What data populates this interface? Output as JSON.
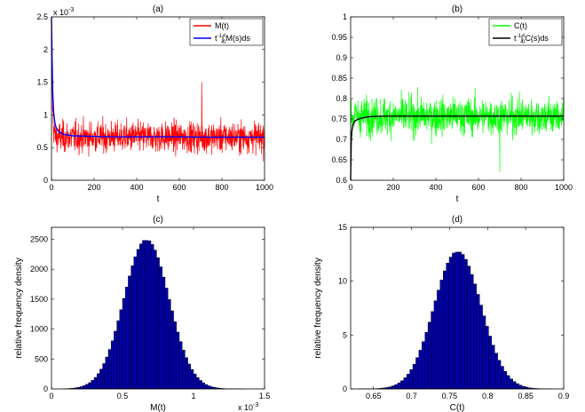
{
  "chart_data": [
    {
      "panel_label": "(a)",
      "type": "line",
      "xlabel": "t",
      "ylabel": "",
      "xlim": [
        0,
        1000
      ],
      "ylim": [
        0,
        0.0025
      ],
      "xticks": [
        "0",
        "200",
        "400",
        "600",
        "800",
        "1000"
      ],
      "yticks": [
        "0",
        "0.5",
        "1",
        "1.5",
        "2",
        "2.5"
      ],
      "y_exponent": "x 10",
      "y_exponent_power": "-3",
      "legend_position": "top-right",
      "series": [
        {
          "name": "M(t)",
          "color": "#ff0000",
          "description_points": {
            "t": [
              0,
              5,
              10,
              20,
              50,
              100,
              200,
              300,
              400,
              500,
              600,
              700,
              705,
              800,
              900,
              1000
            ],
            "y": [
              0.0024,
              0.0017,
              0.0012,
              0.0009,
              0.00075,
              0.0007,
              0.00068,
              0.00067,
              0.00066,
              0.00066,
              0.00066,
              0.00066,
              0.0015,
              0.00066,
              0.00066,
              0.00066
            ]
          },
          "noise_band": [
            0.0002,
            0.0013
          ]
        },
        {
          "name_parts": [
            "t",
            "-1",
            "∫",
            "t",
            "0",
            "M(s)ds"
          ],
          "color": "#0000ff",
          "x": [
            0,
            3,
            6,
            10,
            15,
            20,
            30,
            40,
            60,
            80,
            100,
            150,
            200,
            300,
            400,
            500,
            600,
            700,
            800,
            900,
            1000
          ],
          "y": [
            0.0025,
            0.00185,
            0.00135,
            0.00105,
            0.0009,
            0.00082,
            0.00076,
            0.00073,
            0.0007,
            0.00069,
            0.00068,
            0.000675,
            0.00067,
            0.000665,
            0.000665,
            0.000665,
            0.000665,
            0.00066,
            0.00066,
            0.00066,
            0.00066
          ]
        }
      ]
    },
    {
      "panel_label": "(b)",
      "type": "line",
      "xlabel": "t",
      "ylabel": "",
      "xlim": [
        0,
        1000
      ],
      "ylim": [
        0.6,
        1.0
      ],
      "xticks": [
        "0",
        "200",
        "400",
        "600",
        "800",
        "1000"
      ],
      "yticks": [
        "0.6",
        "0.65",
        "0.7",
        "0.75",
        "0.8",
        "0.85",
        "0.9",
        "0.95",
        "1"
      ],
      "legend_position": "top-right",
      "series": [
        {
          "name": "C(t)",
          "color": "#00ff00",
          "noise_center": 0.757,
          "noise_band": [
            0.62,
            0.86
          ]
        },
        {
          "name_parts": [
            "t",
            "-1",
            "∫",
            "t",
            "0",
            "C(s)ds"
          ],
          "color": "#000000",
          "x": [
            0,
            3,
            6,
            10,
            20,
            30,
            50,
            80,
            100,
            150,
            200,
            300,
            400,
            500,
            600,
            700,
            800,
            900,
            1000
          ],
          "y": [
            0.6,
            0.7,
            0.72,
            0.735,
            0.745,
            0.748,
            0.752,
            0.755,
            0.756,
            0.757,
            0.757,
            0.757,
            0.757,
            0.757,
            0.757,
            0.757,
            0.757,
            0.757,
            0.757
          ]
        }
      ]
    },
    {
      "panel_label": "(c)",
      "type": "bar",
      "xlabel": "M(t)",
      "ylabel": "relative frequency density",
      "xlim": [
        0,
        0.0015
      ],
      "ylim": [
        0,
        2700
      ],
      "xticks": [
        "0",
        "0.5",
        "1",
        "1.5"
      ],
      "yticks": [
        "0",
        "500",
        "1000",
        "1500",
        "2000",
        "2500"
      ],
      "x_exponent": "x 10",
      "x_exponent_power": "-3",
      "color": "#0000aa",
      "distribution": {
        "mean": 0.00065,
        "sd": 0.00016,
        "peak": 2480,
        "from": 8e-05,
        "to": 0.00136,
        "bins": 64
      }
    },
    {
      "panel_label": "(d)",
      "type": "bar",
      "xlabel": "C(t)",
      "ylabel": "relative frequency density",
      "xlim": [
        0.62,
        0.9
      ],
      "ylim": [
        0,
        15
      ],
      "xticks": [
        "0.65",
        "0.7",
        "0.75",
        "0.8",
        "0.85",
        "0.9"
      ],
      "yticks": [
        "0",
        "5",
        "10",
        "15"
      ],
      "color": "#0000aa",
      "distribution": {
        "mean": 0.757,
        "sd": 0.031,
        "peak": 12.7,
        "from": 0.63,
        "to": 0.885,
        "bins": 64
      }
    }
  ]
}
